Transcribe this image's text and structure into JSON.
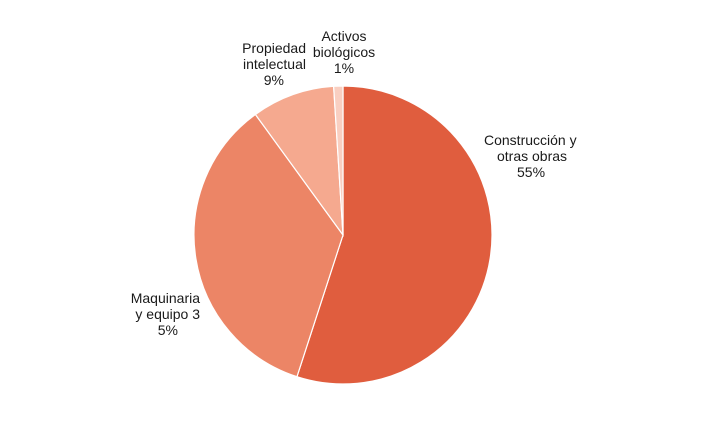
{
  "chart_data": {
    "type": "pie",
    "title": "",
    "slices": [
      {
        "name": "Construcción y otras obras",
        "value": 55,
        "label_lines": [
          "Construcción y",
          "otras obras",
          "55%"
        ],
        "color": "#e05d3e"
      },
      {
        "name": "Maquinaria y equipo",
        "value": 35,
        "label_lines": [
          "Maquinaria",
          "y equipo 3",
          "5%"
        ],
        "color": "#ec8566"
      },
      {
        "name": "Propiedad intelectual",
        "value": 9,
        "label_lines": [
          "Propiedad",
          "intelectual",
          "9%"
        ],
        "color": "#f5a98f"
      },
      {
        "name": "Activos biológicos",
        "value": 1,
        "label_lines": [
          "Activos",
          "biológicos",
          "1%"
        ],
        "color": "#f9cfc1"
      }
    ],
    "start_angle_deg": 0,
    "direction": "clockwise",
    "legend": "none",
    "stroke_color": "#ffffff"
  }
}
